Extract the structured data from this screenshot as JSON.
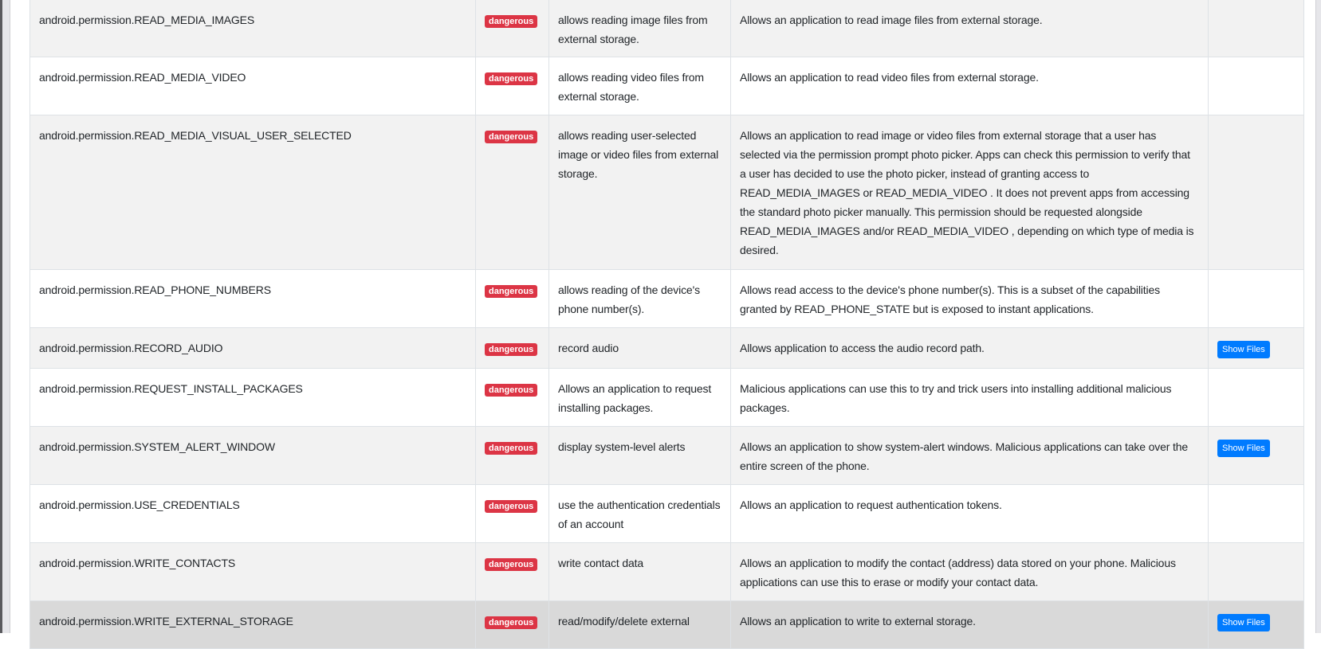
{
  "colors": {
    "danger": "#dc3545",
    "primary": "#007bff",
    "stripe": "#f2f2f2",
    "hover": "#d9d9d9"
  },
  "rows": [
    {
      "permission": "android.permission.READ_MEDIA_IMAGES",
      "status": "dangerous",
      "info": "allows reading image files from external storage.",
      "description": "Allows an application to read image files from external storage.",
      "action": ""
    },
    {
      "permission": "android.permission.READ_MEDIA_VIDEO",
      "status": "dangerous",
      "info": "allows reading video files from external storage.",
      "description": "Allows an application to read video files from external storage.",
      "action": ""
    },
    {
      "permission": "android.permission.READ_MEDIA_VISUAL_USER_SELECTED",
      "status": "dangerous",
      "info": "allows reading user-selected image or video files from external storage.",
      "description": "Allows an application to read image or video files from external storage that a user has selected via the permission prompt photo picker. Apps can check this permission to verify that a user has decided to use the photo picker, instead of granting access to READ_MEDIA_IMAGES or READ_MEDIA_VIDEO . It does not prevent apps from accessing the standard photo picker manually. This permission should be requested alongside READ_MEDIA_IMAGES and/or READ_MEDIA_VIDEO , depending on which type of media is desired.",
      "action": ""
    },
    {
      "permission": "android.permission.READ_PHONE_NUMBERS",
      "status": "dangerous",
      "info": "allows reading of the device's phone number(s).",
      "description": "Allows read access to the device's phone number(s). This is a subset of the capabilities granted by READ_PHONE_STATE but is exposed to instant applications.",
      "action": ""
    },
    {
      "permission": "android.permission.RECORD_AUDIO",
      "status": "dangerous",
      "info": "record audio",
      "description": "Allows application to access the audio record path.",
      "action": "Show Files"
    },
    {
      "permission": "android.permission.REQUEST_INSTALL_PACKAGES",
      "status": "dangerous",
      "info": "Allows an application to request installing packages.",
      "description": "Malicious applications can use this to try and trick users into installing additional malicious packages.",
      "action": ""
    },
    {
      "permission": "android.permission.SYSTEM_ALERT_WINDOW",
      "status": "dangerous",
      "info": "display system-level alerts",
      "description": "Allows an application to show system-alert windows. Malicious applications can take over the entire screen of the phone.",
      "action": "Show Files"
    },
    {
      "permission": "android.permission.USE_CREDENTIALS",
      "status": "dangerous",
      "info": "use the authentication credentials of an account",
      "description": "Allows an application to request authentication tokens.",
      "action": ""
    },
    {
      "permission": "android.permission.WRITE_CONTACTS",
      "status": "dangerous",
      "info": "write contact data",
      "description": "Allows an application to modify the contact (address) data stored on your phone. Malicious applications can use this to erase or modify your contact data.",
      "action": ""
    },
    {
      "permission": "android.permission.WRITE_EXTERNAL_STORAGE",
      "status": "dangerous",
      "info": "read/modify/delete external",
      "description": "Allows an application to write to external storage.",
      "action": "Show Files"
    }
  ]
}
